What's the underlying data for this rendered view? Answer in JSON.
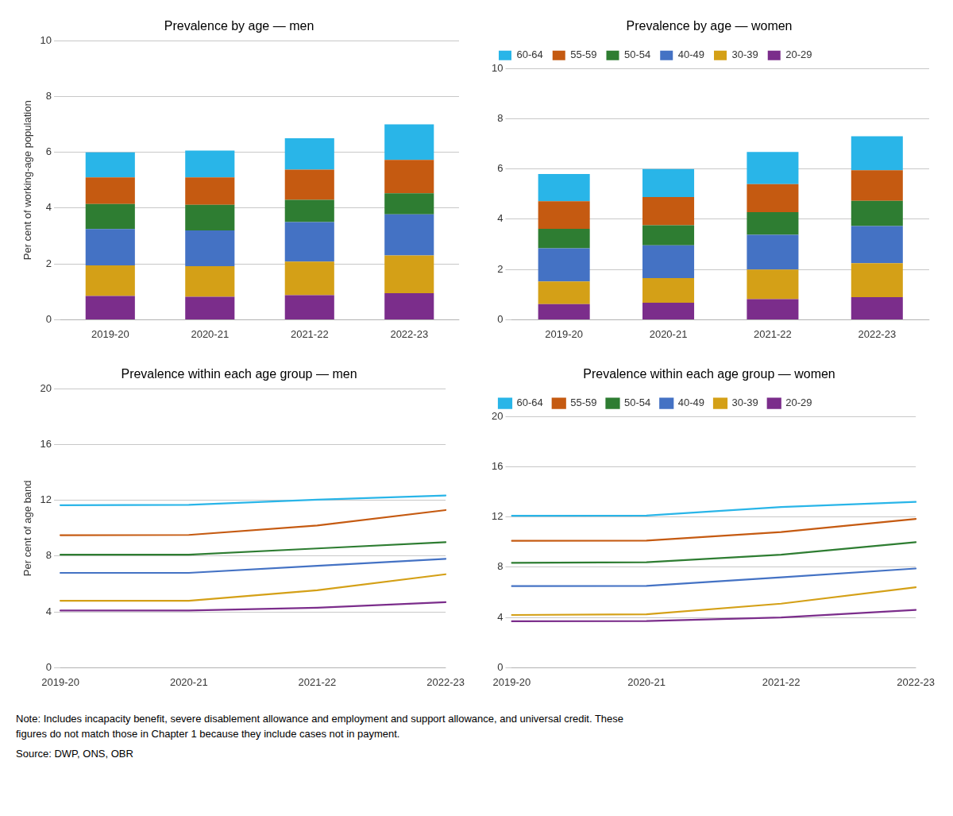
{
  "chart_data": [
    {
      "type": "bar",
      "title": "Prevalence by age — men",
      "categories": [
        "2019-20",
        "2020-21",
        "2021-22",
        "2022-23"
      ],
      "ylabel": "Per cent of working-age population",
      "stacked": true,
      "series": [
        {
          "name": "20-29",
          "color": "#7b2d8b",
          "values": [
            0.85,
            0.82,
            0.88,
            0.95
          ]
        },
        {
          "name": "30-39",
          "color": "#d4a017",
          "values": [
            1.1,
            1.1,
            1.2,
            1.35
          ]
        },
        {
          "name": "40-49",
          "color": "#4472c4",
          "values": [
            1.3,
            1.28,
            1.42,
            1.48
          ]
        },
        {
          "name": "50-54",
          "color": "#2e7d32",
          "values": [
            0.9,
            0.92,
            0.8,
            0.75
          ]
        },
        {
          "name": "55-59",
          "color": "#c55a11",
          "values": [
            0.95,
            0.98,
            1.08,
            1.2
          ]
        },
        {
          "name": "60-64",
          "color": "#29b5e8",
          "values": [
            0.9,
            0.96,
            1.12,
            1.27
          ]
        }
      ],
      "ylim": [
        0,
        10
      ],
      "yticks": [
        0,
        2,
        4,
        6,
        8,
        10
      ],
      "grid": true
    },
    {
      "type": "bar",
      "title": "Prevalence by age — women",
      "categories": [
        "2019-20",
        "2020-21",
        "2021-22",
        "2022-23"
      ],
      "stacked": true,
      "series": [
        {
          "name": "20-29",
          "color": "#7b2d8b",
          "values": [
            0.62,
            0.68,
            0.82,
            0.9
          ]
        },
        {
          "name": "30-39",
          "color": "#d4a017",
          "values": [
            0.9,
            0.98,
            1.18,
            1.35
          ]
        },
        {
          "name": "40-49",
          "color": "#4472c4",
          "values": [
            1.32,
            1.3,
            1.38,
            1.48
          ]
        },
        {
          "name": "50-54",
          "color": "#2e7d32",
          "values": [
            0.78,
            0.8,
            0.9,
            1.0
          ]
        },
        {
          "name": "55-59",
          "color": "#c55a11",
          "values": [
            1.1,
            1.12,
            1.12,
            1.22
          ]
        },
        {
          "name": "60-64",
          "color": "#29b5e8",
          "values": [
            1.08,
            1.12,
            1.28,
            1.35
          ]
        }
      ],
      "ylim": [
        0,
        10
      ],
      "yticks": [
        0,
        2,
        4,
        6,
        8,
        10
      ],
      "grid": true,
      "legend": "upper left"
    },
    {
      "type": "line",
      "title": "Prevalence within each age group — men",
      "categories": [
        "2019-20",
        "2020-21",
        "2021-22",
        "2022-23"
      ],
      "ylabel": "Per cent of age band",
      "series": [
        {
          "name": "60-64",
          "color": "#29b5e8",
          "values": [
            11.65,
            11.68,
            12.05,
            12.35
          ]
        },
        {
          "name": "55-59",
          "color": "#c55a11",
          "values": [
            9.5,
            9.52,
            10.2,
            11.3
          ]
        },
        {
          "name": "50-54",
          "color": "#2e7d32",
          "values": [
            8.1,
            8.1,
            8.55,
            9.0
          ]
        },
        {
          "name": "40-49",
          "color": "#4472c4",
          "values": [
            6.8,
            6.8,
            7.3,
            7.8
          ]
        },
        {
          "name": "30-39",
          "color": "#d4a017",
          "values": [
            4.8,
            4.8,
            5.55,
            6.7
          ]
        },
        {
          "name": "20-29",
          "color": "#7b2d8b",
          "values": [
            4.1,
            4.1,
            4.3,
            4.7
          ]
        }
      ],
      "ylim": [
        0,
        20
      ],
      "yticks": [
        0,
        4,
        8,
        12,
        16,
        20
      ],
      "grid": true
    },
    {
      "type": "line",
      "title": "Prevalence within each age group — women",
      "categories": [
        "2019-20",
        "2020-21",
        "2021-22",
        "2022-23"
      ],
      "series": [
        {
          "name": "60-64",
          "color": "#29b5e8",
          "values": [
            12.1,
            12.12,
            12.8,
            13.2
          ]
        },
        {
          "name": "55-59",
          "color": "#c55a11",
          "values": [
            10.1,
            10.12,
            10.8,
            11.85
          ]
        },
        {
          "name": "50-54",
          "color": "#2e7d32",
          "values": [
            8.35,
            8.4,
            9.0,
            10.0
          ]
        },
        {
          "name": "40-49",
          "color": "#4472c4",
          "values": [
            6.5,
            6.52,
            7.2,
            7.9
          ]
        },
        {
          "name": "30-39",
          "color": "#d4a017",
          "values": [
            4.2,
            4.25,
            5.1,
            6.4
          ]
        },
        {
          "name": "20-29",
          "color": "#7b2d8b",
          "values": [
            3.7,
            3.72,
            4.0,
            4.6
          ]
        }
      ],
      "ylim": [
        0,
        20
      ],
      "yticks": [
        0,
        4,
        8,
        12,
        16,
        20
      ],
      "grid": true,
      "legend": "upper left"
    }
  ],
  "annotations": [
    "Note: Includes incapacity benefit, severe disablement allowance and employment and support allowance, and universal credit. These",
    "figures do not match those in Chapter 1 because they include cases not in payment.",
    "Source: DWP, ONS, OBR"
  ]
}
